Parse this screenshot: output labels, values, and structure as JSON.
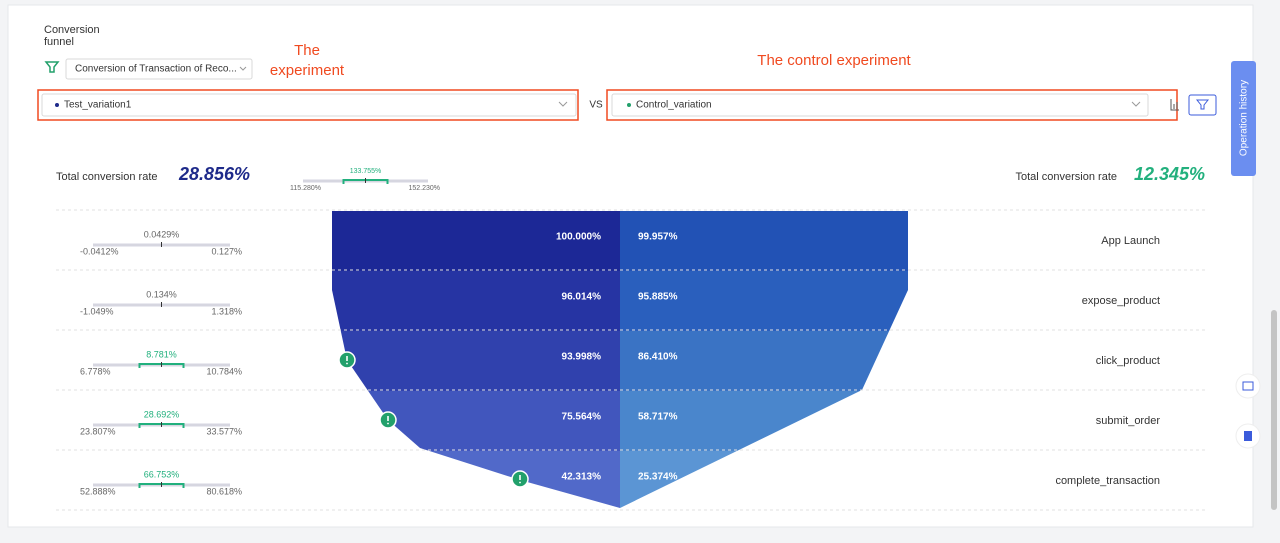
{
  "header": {
    "title": "Conversion funnel",
    "funnel_select": "Conversion of Transaction of Reco..."
  },
  "annotations": {
    "experiment": "The experiment",
    "control": "The control experiment"
  },
  "compare": {
    "experiment": "Test_variation1",
    "vs": "VS",
    "control": "Control_variation"
  },
  "side_tab": "Operation history",
  "summary": {
    "experiment_label": "Total conversion rate",
    "experiment_rate": "28.856%",
    "control_label": "Total conversion rate",
    "control_rate": "12.345%",
    "interval": {
      "mid": "133.755%",
      "low": "115.280%",
      "high": "152.230%",
      "significant": true
    }
  },
  "steps": [
    {
      "name": "App Launch",
      "experiment": "100.000%",
      "control": "99.957%",
      "interval": {
        "mid": "0.0429%",
        "low": "-0.0412%",
        "high": "0.127%",
        "significant": false
      }
    },
    {
      "name": "expose_product",
      "experiment": "96.014%",
      "control": "95.885%",
      "interval": {
        "mid": "0.134%",
        "low": "-1.049%",
        "high": "1.318%",
        "significant": false
      }
    },
    {
      "name": "click_product",
      "experiment": "93.998%",
      "control": "86.410%",
      "interval": {
        "mid": "8.781%",
        "low": "6.778%",
        "high": "10.784%",
        "significant": true
      }
    },
    {
      "name": "submit_order",
      "experiment": "75.564%",
      "control": "58.717%",
      "interval": {
        "mid": "28.692%",
        "low": "23.807%",
        "high": "33.577%",
        "significant": true
      }
    },
    {
      "name": "complete_transaction",
      "experiment": "42.313%",
      "control": "25.374%",
      "interval": {
        "mid": "66.753%",
        "low": "52.888%",
        "high": "80.618%",
        "significant": true
      }
    }
  ]
}
